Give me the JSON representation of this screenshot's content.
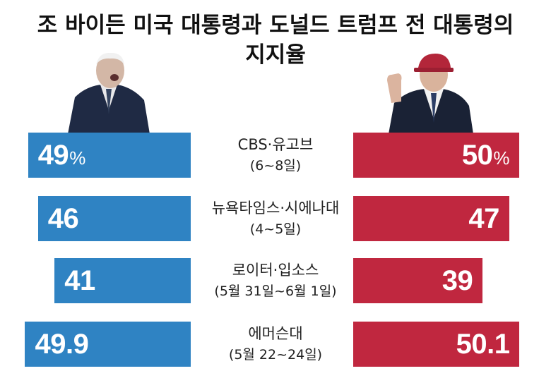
{
  "title": {
    "line1": "조 바이든 미국 대통령과 도널드 트럼프 전 대통령의",
    "line2": "지지율"
  },
  "colors": {
    "biden": "#2f83c3",
    "trump": "#c0273f",
    "text": "#111111"
  },
  "chart_data": {
    "type": "bar",
    "title": "조 바이든 미국 대통령과 도널드 트럼프 전 대통령의 지지율",
    "unit": "%",
    "categories": [
      {
        "pollster": "CBS·유고브",
        "dates": "(6~8일)"
      },
      {
        "pollster": "뉴욕타임스·시에나대",
        "dates": "(4~5일)"
      },
      {
        "pollster": "로이터·입소스",
        "dates": "(5월 31일~6월 1일)"
      },
      {
        "pollster": "에머슨대",
        "dates": "(5월 22~24일)"
      }
    ],
    "series": [
      {
        "values": [
          49,
          46,
          41,
          49.9
        ],
        "labels": [
          "49",
          "46",
          "41",
          "49.9"
        ],
        "color": "#2f83c3"
      },
      {
        "values": [
          50,
          47,
          39,
          50.1
        ],
        "labels": [
          "50",
          "47",
          "39",
          "50.1"
        ],
        "color": "#c0273f"
      }
    ]
  }
}
